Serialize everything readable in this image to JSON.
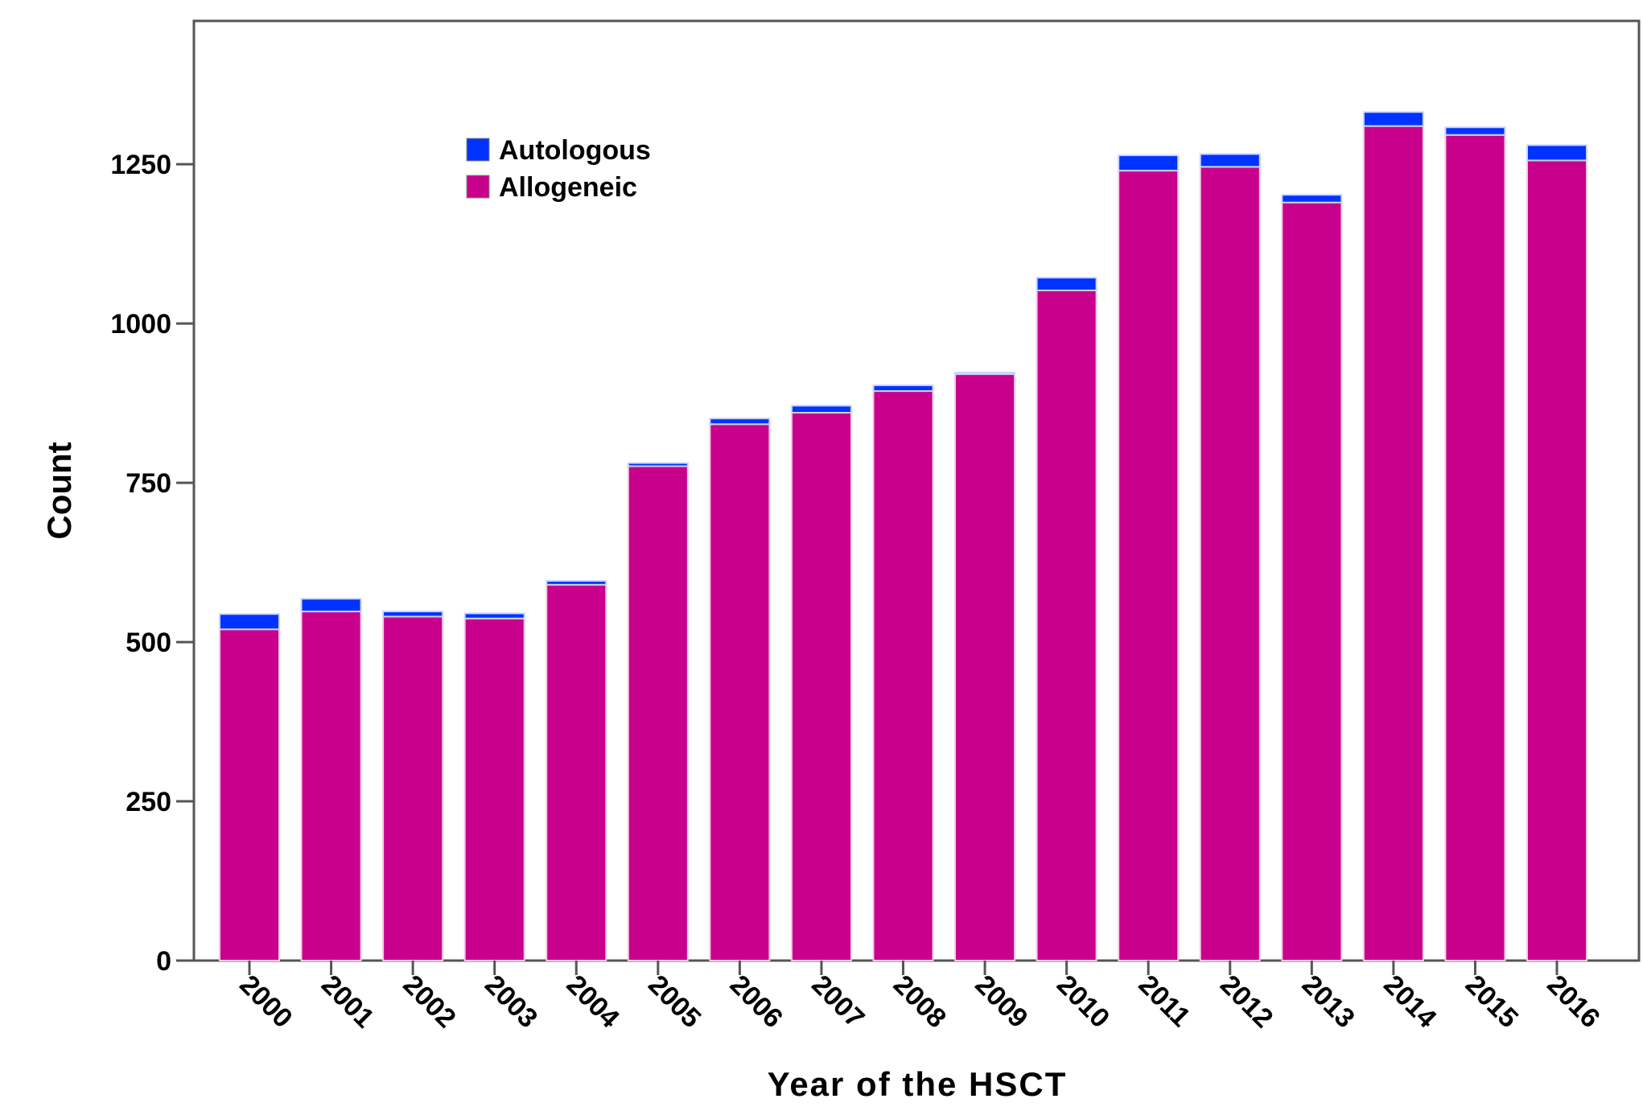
{
  "chart_data": {
    "type": "bar",
    "stacked": true,
    "categories": [
      "2000",
      "2001",
      "2002",
      "2003",
      "2004",
      "2005",
      "2006",
      "2007",
      "2008",
      "2009",
      "2010",
      "2011",
      "2012",
      "2013",
      "2014",
      "2015",
      "2016"
    ],
    "series": [
      {
        "name": "Allogeneic",
        "color": "#c8008c",
        "values": [
          520,
          548,
          540,
          537,
          590,
          776,
          842,
          860,
          894,
          922,
          1052,
          1240,
          1246,
          1190,
          1310,
          1296,
          1256
        ]
      },
      {
        "name": "Autologous",
        "color": "#0033ff",
        "values": [
          24,
          20,
          8,
          8,
          6,
          5,
          9,
          11,
          9,
          1,
          20,
          24,
          20,
          12,
          22,
          12,
          24
        ]
      }
    ],
    "legend_order": [
      "Autologous",
      "Allogeneic"
    ],
    "legend_position": "top-left",
    "xlabel": "Year of the HSCT",
    "ylabel": "Count",
    "ylim": [
      0,
      1475
    ],
    "yticks": [
      0,
      250,
      500,
      750,
      1000,
      1250
    ],
    "grid": false
  }
}
